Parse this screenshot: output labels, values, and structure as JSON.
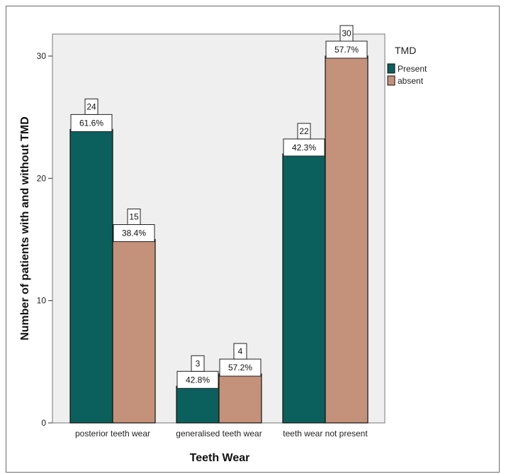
{
  "chart_data": {
    "type": "bar",
    "categories": [
      "posterior teeth wear",
      "generalised teeth wear",
      "teeth wear not present"
    ],
    "series": [
      {
        "name": "Present",
        "values": [
          24,
          3,
          22
        ],
        "percent_labels": [
          "61.6%",
          "42.8%",
          "42.3%"
        ],
        "color": "#0b5f5c"
      },
      {
        "name": "absent",
        "values": [
          15,
          4,
          30
        ],
        "percent_labels": [
          "38.4%",
          "57.2%",
          "57.7%"
        ],
        "color": "#c4917a"
      }
    ],
    "xlabel": "Teeth Wear",
    "ylabel": "Number of patients with and without TMD",
    "ylim": [
      0,
      30
    ],
    "yticks": [
      "0",
      "10",
      "20",
      "30"
    ],
    "legend": {
      "title": "TMD",
      "position": "right"
    },
    "grid": false
  },
  "colors": {
    "plot_background": "#efefef"
  }
}
